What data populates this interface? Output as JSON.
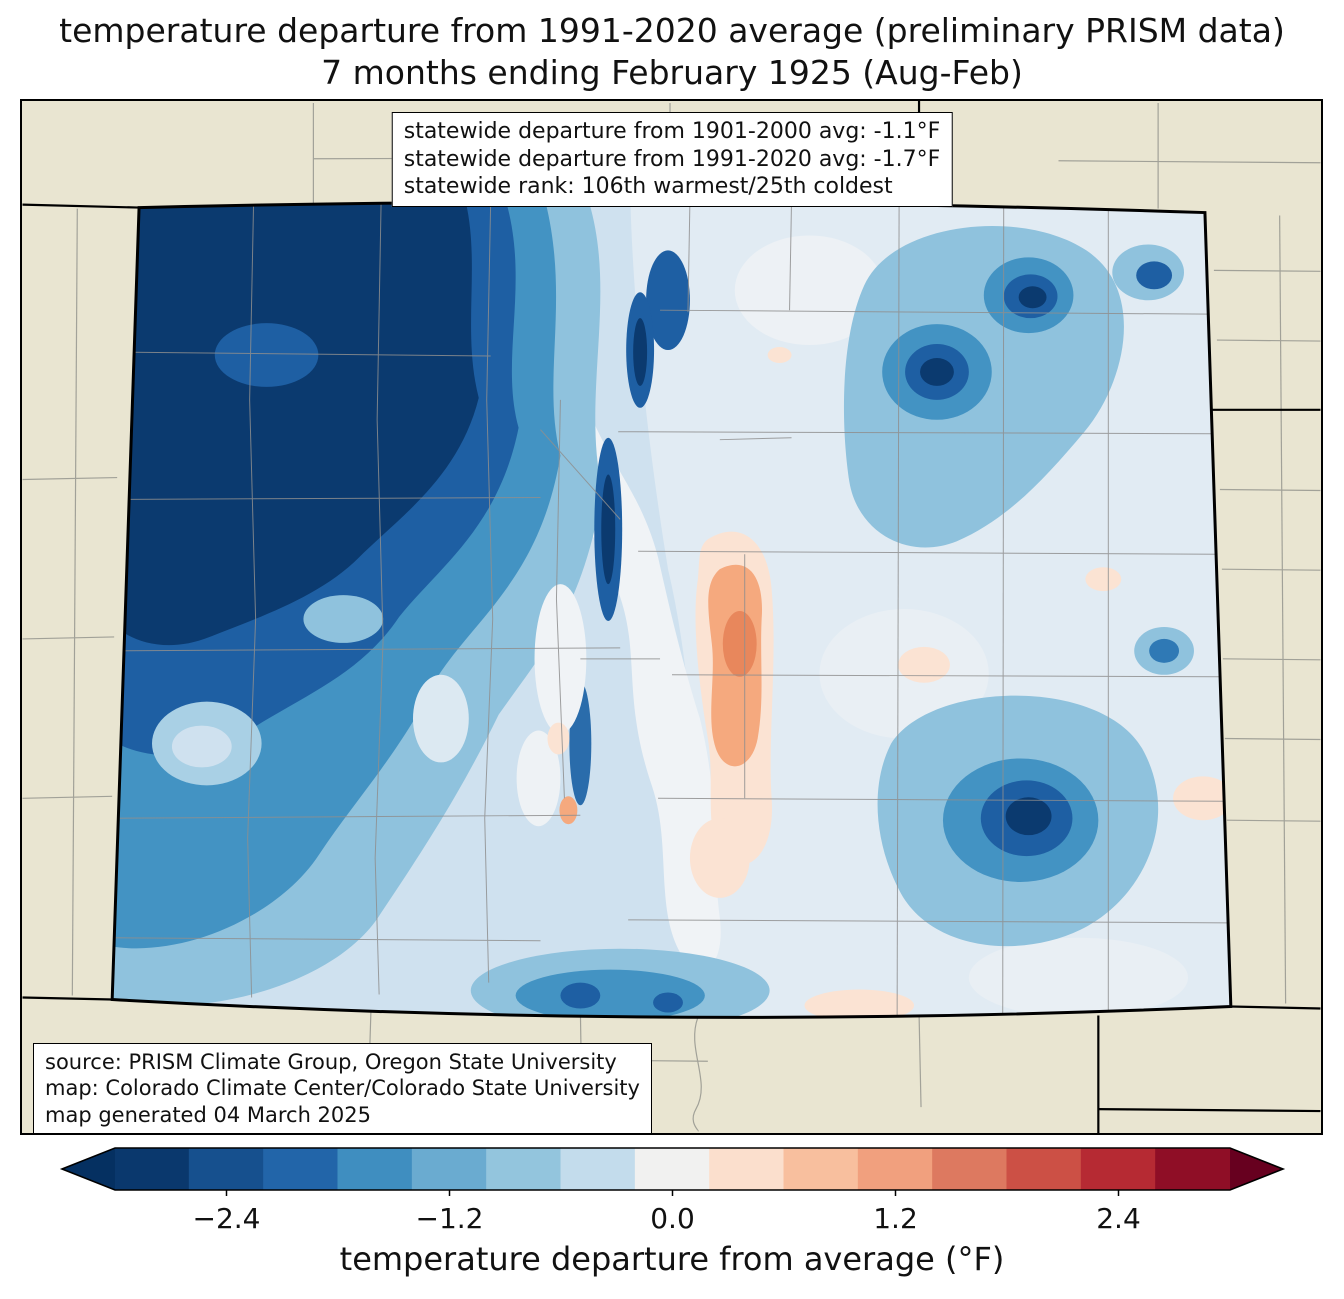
{
  "title": {
    "line1": "temperature departure from 1991-2020 average (preliminary PRISM data)",
    "line2": "7 months ending February 1925 (Aug-Feb)"
  },
  "stats_box": {
    "lines": [
      "statewide departure from 1901-2000 avg: -1.1°F",
      "statewide departure from 1991-2020 avg: -1.7°F",
      "statewide rank: 106th warmest/25th coldest"
    ]
  },
  "source_box": {
    "lines": [
      "source: PRISM Climate Group, Oregon State University",
      "map: Colorado Climate Center/Colorado State University",
      "map generated 04 March 2025"
    ]
  },
  "colorbar": {
    "label": "temperature departure from average (°F)",
    "tick_labels": [
      "−2.4",
      "−1.2",
      "0.0",
      "1.2",
      "2.4"
    ],
    "tick_values": [
      -2.4,
      -1.2,
      0.0,
      1.2,
      2.4
    ],
    "range_min": -3.0,
    "range_max": 3.0,
    "segment_colors": [
      "#0a386d",
      "#16508e",
      "#2265a9",
      "#3f8ec0",
      "#6aabd0",
      "#93c5dd",
      "#c3dcec",
      "#f1f1f0",
      "#fbdfcd",
      "#f8bf9e",
      "#f1a07e",
      "#dd7960",
      "#cc5045",
      "#b62a33",
      "#8f0e26"
    ],
    "arrow_left_color": "#053061",
    "arrow_right_color": "#67001f"
  },
  "map": {
    "background_color": "#e9e5d1",
    "state_border_color": "#000000",
    "county_line_color": "#8f8f8f"
  }
}
